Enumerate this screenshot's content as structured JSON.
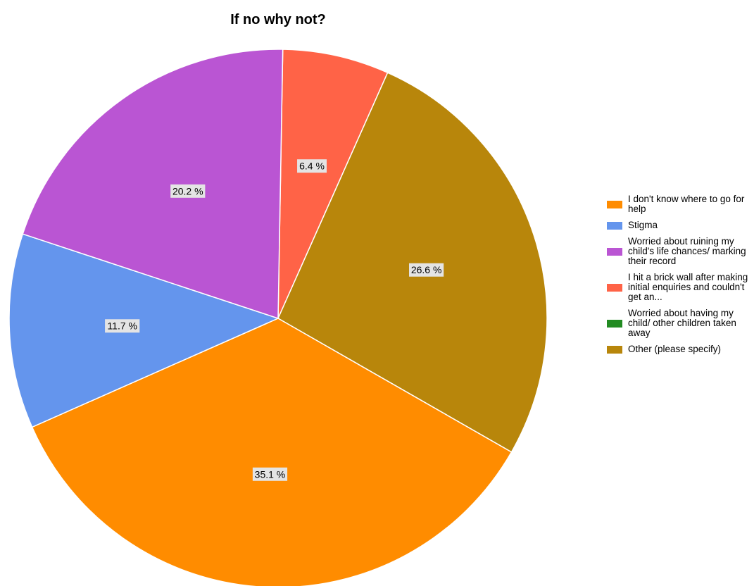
{
  "chart_data": {
    "type": "pie",
    "title": "If no why not?",
    "slices": [
      {
        "label": "I don't know where to go for help",
        "value": 35.1,
        "value_label": "35.1 %",
        "color": "#FF8C00"
      },
      {
        "label": "Stigma",
        "value": 11.7,
        "value_label": "11.7 %",
        "color": "#6495ED"
      },
      {
        "label": "Worried about ruining my child's life chances/ marking their record",
        "value": 20.2,
        "value_label": "20.2 %",
        "color": "#BA55D3"
      },
      {
        "label": "I hit a brick wall after making initial enquiries and couldn't get an...",
        "value": 6.4,
        "value_label": "6.4 %",
        "color": "#FF6347"
      },
      {
        "label": "Worried about having my child/ other children taken away",
        "value": 0,
        "value_label": "",
        "color": "#228B22"
      },
      {
        "label": "Other (please specify)",
        "value": 26.6,
        "value_label": "26.6 %",
        "color": "#B8860B"
      }
    ],
    "legend_position": "right"
  }
}
